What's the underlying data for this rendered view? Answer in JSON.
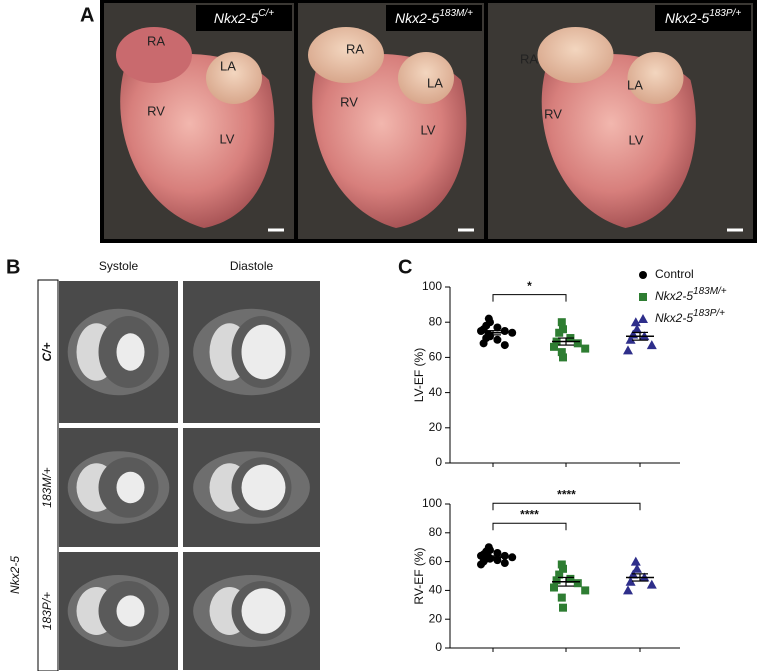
{
  "panel_a": {
    "label": "A",
    "photos": [
      {
        "genotype": "Nkx2-5",
        "genotype_sup": "C/+",
        "chambers": [
          "RA",
          "LA",
          "RV",
          "LV"
        ]
      },
      {
        "genotype": "Nkx2-5",
        "genotype_sup": "183M/+",
        "chambers": [
          "RA",
          "LA",
          "RV",
          "LV"
        ]
      },
      {
        "genotype": "Nkx2-5",
        "genotype_sup": "183P/+",
        "chambers": [
          "RA",
          "LA",
          "RV",
          "LV"
        ]
      }
    ]
  },
  "panel_b": {
    "label": "B",
    "columns": [
      "Systole",
      "Diastole"
    ],
    "row_title": "Nkx2-5",
    "rows": [
      "C/+",
      "183M/+",
      "183P/+"
    ]
  },
  "panel_c_label": "C",
  "chart_data": [
    {
      "type": "strip",
      "ylabel": "LV-EF (%)",
      "ylim": [
        0,
        100
      ],
      "yticks": [
        0,
        20,
        40,
        60,
        80,
        100
      ],
      "series": [
        {
          "name": "Control",
          "color": "#000000",
          "marker": "circle",
          "values": [
            82,
            80,
            78,
            77,
            76,
            75,
            75,
            74,
            73,
            72,
            71,
            70,
            68,
            67
          ],
          "mean": 74,
          "sem": 1.2
        },
        {
          "name": "Nkx2-5",
          "name_sup": "183M/+",
          "color": "#2e7d32",
          "marker": "square",
          "values": [
            80,
            76,
            74,
            71,
            69,
            68,
            66,
            65,
            63,
            60
          ],
          "mean": 69,
          "sem": 2,
          "significance": "*"
        },
        {
          "name": "Nkx2-5",
          "name_sup": "183P/+",
          "color": "#2e2e8a",
          "marker": "triangle",
          "values": [
            80,
            76,
            73,
            72,
            70,
            67,
            64
          ],
          "mean": 72,
          "sem": 2.2
        }
      ]
    },
    {
      "type": "strip",
      "ylabel": "RV-EF (%)",
      "ylim": [
        0,
        100
      ],
      "yticks": [
        0,
        20,
        40,
        60,
        80,
        100
      ],
      "series": [
        {
          "color": "#000000",
          "marker": "circle",
          "values": [
            70,
            68,
            67,
            66,
            65,
            64,
            64,
            63,
            63,
            62,
            62,
            61,
            60,
            59,
            58
          ],
          "mean": 63,
          "sem": 1
        },
        {
          "color": "#2e7d32",
          "marker": "square",
          "values": [
            58,
            55,
            51,
            48,
            47,
            45,
            42,
            40,
            35,
            28
          ],
          "mean": 46,
          "sem": 3,
          "significance": "****"
        },
        {
          "color": "#2e2e8a",
          "marker": "triangle",
          "values": [
            60,
            55,
            51,
            49,
            46,
            44,
            40
          ],
          "mean": 49,
          "sem": 2.5,
          "significance": "****"
        }
      ]
    }
  ]
}
